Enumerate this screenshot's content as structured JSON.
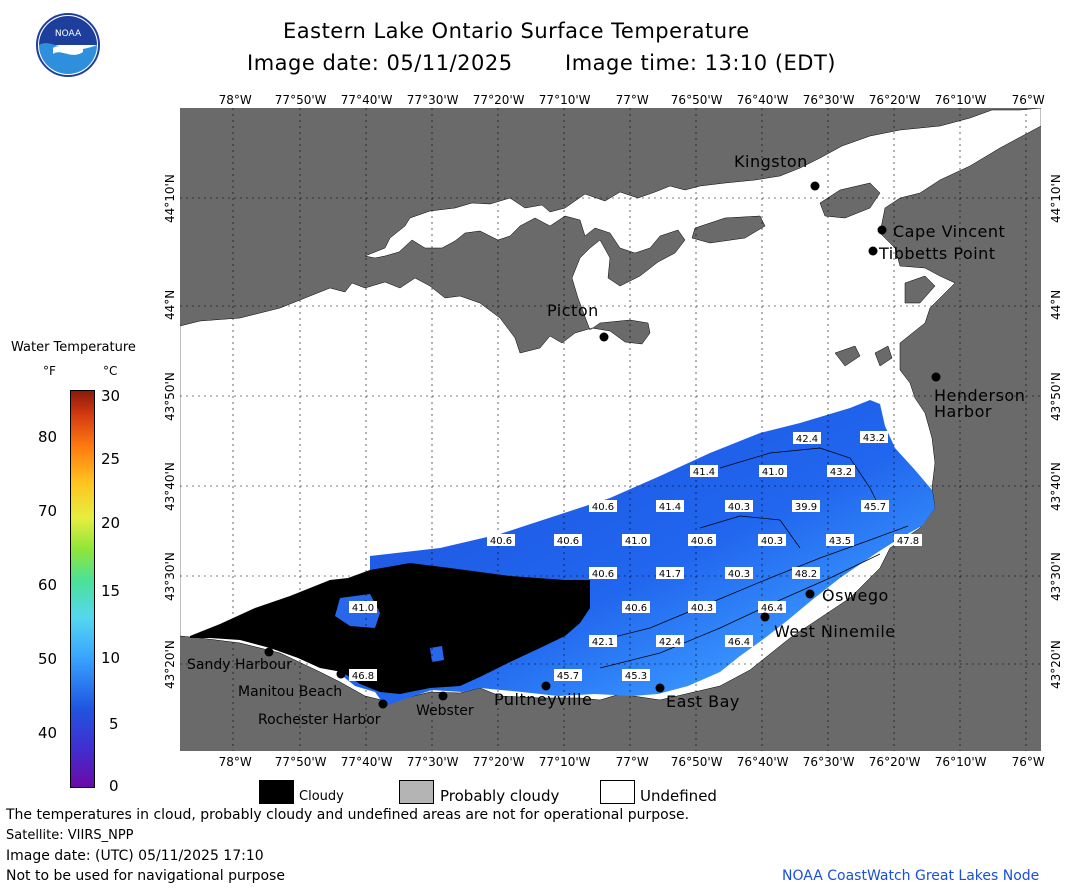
{
  "header": {
    "title": "Eastern Lake Ontario Surface Temperature",
    "date_label": "Image date: 05/11/2025",
    "time_label": "Image time: 13:10 (EDT)"
  },
  "logo": {
    "text": "NOAA"
  },
  "lon_labels": [
    "78°W",
    "77°50'W",
    "77°40'W",
    "77°30'W",
    "77°20'W",
    "77°10'W",
    "77°W",
    "76°50'W",
    "76°40'W",
    "76°30'W",
    "76°20'W",
    "76°10'W",
    "76°W"
  ],
  "lat_labels": [
    "44°10'N",
    "44°N",
    "43°50'N",
    "43°40'N",
    "43°30'N",
    "43°20'N"
  ],
  "colorbar": {
    "title": "Water Temperature",
    "unit_f": "°F",
    "unit_c": "°C",
    "f_ticks": [
      "80",
      "70",
      "60",
      "50",
      "40"
    ],
    "c_ticks": [
      "30",
      "25",
      "20",
      "15",
      "10",
      "5",
      "0"
    ]
  },
  "places": {
    "kingston": "Kingston",
    "cape_vincent": "Cape Vincent",
    "tibbetts_point": "Tibbetts Point",
    "picton": "Picton",
    "henderson_harbor_1": "Henderson",
    "henderson_harbor_2": "Harbor",
    "oswego": "Oswego",
    "west_ninemile": "West Ninemile",
    "sandy_harbour": "Sandy Harbour",
    "manitou_beach": "Manitou Beach",
    "rochester_harbor": "Rochester Harbor",
    "webster": "Webster",
    "pultneyville": "Pultneyville",
    "east_bay": "East Bay"
  },
  "temps": [
    "42.4",
    "43.2",
    "41.4",
    "41.0",
    "43.2",
    "40.6",
    "41.4",
    "40.3",
    "39.9",
    "45.7",
    "40.6",
    "40.6",
    "41.0",
    "40.6",
    "40.3",
    "43.5",
    "47.8",
    "40.6",
    "41.7",
    "40.3",
    "48.2",
    "41.0",
    "40.6",
    "40.3",
    "46.4",
    "42.1",
    "42.4",
    "46.4",
    "46.8",
    "45.7",
    "45.3"
  ],
  "legend": {
    "cloudy": "Cloudy",
    "probably_cloudy": "Probably cloudy",
    "undefined": "Undefined"
  },
  "colors": {
    "land": "#6a6a6a",
    "cloudy": "#000000",
    "probably_cloudy": "#b4b4b4",
    "undefined": "#ffffff",
    "water_cold": "#1f56e0",
    "water_warm": "#5fc8ff"
  },
  "footer": {
    "disclaimer": "The temperatures in cloud, probably cloudy and undefined areas are not for operational purpose.",
    "satellite": "Satellite: VIIRS_NPP",
    "utc_date": "Image date: (UTC) 05/11/2025  17:10",
    "navigation": "Not to be used for navigational purpose",
    "credit": "NOAA CoastWatch Great Lakes Node"
  }
}
